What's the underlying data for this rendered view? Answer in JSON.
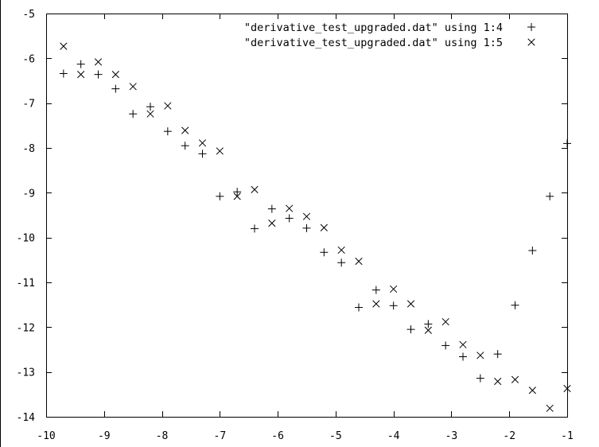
{
  "chart_data": {
    "type": "scatter",
    "xlim": [
      -10,
      -1
    ],
    "ylim": [
      -14,
      -5
    ],
    "x_ticks": [
      -10,
      -9,
      -8,
      -7,
      -6,
      -5,
      -4,
      -3,
      -2,
      -1
    ],
    "y_ticks": [
      -5,
      -6,
      -7,
      -8,
      -9,
      -10,
      -11,
      -12,
      -13,
      -14
    ],
    "x_tick_labels": [
      "-10",
      "-9",
      "-8",
      "-7",
      "-6",
      "-5",
      "-4",
      "-3",
      "-2",
      "-1"
    ],
    "y_tick_labels": [
      "-5",
      "-6",
      "-7",
      "-8",
      "-9",
      "-10",
      "-11",
      "-12",
      "-13",
      "-14"
    ],
    "grid": false,
    "legend_position": "top-right",
    "series": [
      {
        "name": "\"derivative_test_upgraded.dat\" using 1:4",
        "marker": "plus",
        "color": "#000000",
        "x": [
          -9.7,
          -9.4,
          -9.1,
          -8.8,
          -8.5,
          -8.2,
          -7.9,
          -7.6,
          -7.3,
          -7.0,
          -6.7,
          -6.4,
          -6.1,
          -5.8,
          -5.5,
          -5.2,
          -4.9,
          -4.6,
          -4.3,
          -4.0,
          -3.7,
          -3.4,
          -3.1,
          -2.8,
          -2.5,
          -2.2,
          -1.9,
          -1.6,
          -1.3,
          -1.0
        ],
        "y": [
          -6.34,
          -6.13,
          -6.36,
          -6.68,
          -7.24,
          -7.08,
          -7.63,
          -7.95,
          -8.13,
          -9.08,
          -8.98,
          -9.8,
          -9.36,
          -9.57,
          -9.79,
          -10.33,
          -10.56,
          -11.56,
          -11.17,
          -11.52,
          -12.05,
          -11.93,
          -12.41,
          -12.66,
          -13.14,
          -12.6,
          -11.51,
          -10.29,
          -9.08,
          -7.9
        ]
      },
      {
        "name": "\"derivative_test_upgraded.dat\" using 1:5",
        "marker": "cross",
        "color": "#000000",
        "x": [
          -9.7,
          -9.4,
          -9.1,
          -8.8,
          -8.5,
          -8.2,
          -7.9,
          -7.6,
          -7.3,
          -7.0,
          -6.7,
          -6.4,
          -6.1,
          -5.8,
          -5.5,
          -5.2,
          -4.9,
          -4.6,
          -4.3,
          -4.0,
          -3.7,
          -3.4,
          -3.1,
          -2.8,
          -2.5,
          -2.2,
          -1.9,
          -1.6,
          -1.3,
          -1.0
        ],
        "y": [
          -5.73,
          -6.36,
          -6.08,
          -6.36,
          -6.63,
          -7.24,
          -7.06,
          -7.61,
          -7.89,
          -8.07,
          -9.08,
          -8.93,
          -9.68,
          -9.35,
          -9.53,
          -9.78,
          -10.28,
          -10.53,
          -11.48,
          -11.15,
          -11.48,
          -12.07,
          -11.88,
          -12.39,
          -12.63,
          -13.21,
          -13.17,
          -13.41,
          -13.81,
          -13.37
        ]
      }
    ]
  }
}
